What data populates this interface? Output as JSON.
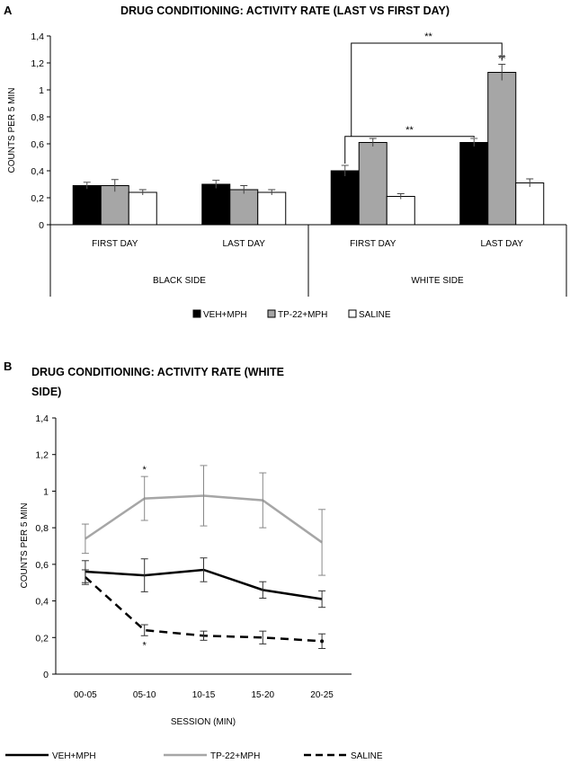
{
  "colors": {
    "veh": "#000000",
    "tp22": "#a6a6a6",
    "saline": "#ffffff",
    "axis": "#000000"
  },
  "chart_data": [
    {
      "panel": "A",
      "type": "bar",
      "title": "DRUG CONDITIONING: ACTIVITY RATE (LAST VS FIRST DAY)",
      "ylabel": "COUNTS PER 5 MIN",
      "xlabel": "",
      "ylim": [
        0,
        1.4
      ],
      "yticks": [
        0,
        0.2,
        0.4,
        0.6,
        0.8,
        1,
        1.2,
        1.4
      ],
      "ytick_labels": [
        "0",
        "0,2",
        "0,4",
        "0,6",
        "0,8",
        "1",
        "1,2",
        "1,4"
      ],
      "categories": [
        "FIRST DAY",
        "LAST DAY",
        "FIRST DAY",
        "LAST DAY"
      ],
      "groups": [
        "BLACK SIDE",
        "WHITE SIDE"
      ],
      "series": [
        {
          "name": "VEH+MPH",
          "color": "#000000",
          "values": [
            0.29,
            0.3,
            0.4,
            0.61
          ],
          "errors": [
            0.025,
            0.03,
            0.04,
            0.03
          ]
        },
        {
          "name": "TP-22+MPH",
          "color": "#a6a6a6",
          "values": [
            0.29,
            0.26,
            0.61,
            1.13
          ],
          "errors": [
            0.045,
            0.03,
            0.03,
            0.06
          ]
        },
        {
          "name": "SALINE",
          "color": "#ffffff",
          "values": [
            0.24,
            0.24,
            0.21,
            0.31
          ],
          "errors": [
            0.02,
            0.02,
            0.02,
            0.03
          ]
        }
      ],
      "annotations": [
        {
          "text": "**",
          "note": "TP-22+MPH white side first day vs last day"
        },
        {
          "text": "**",
          "note": "VEH+MPH white side first day vs last day"
        },
        {
          "text": "**",
          "note": "TP-22+MPH last day"
        }
      ],
      "legend_position": "bottom"
    },
    {
      "panel": "B",
      "type": "line",
      "title_lines": [
        "DRUG CONDITIONING: ACTIVITY RATE (WHITE",
        "SIDE)"
      ],
      "ylabel": "COUNTS PER 5 MIN",
      "xlabel": "SESSION (MIN)",
      "ylim": [
        0,
        1.4
      ],
      "yticks": [
        0,
        0.2,
        0.4,
        0.6,
        0.8,
        1,
        1.2,
        1.4
      ],
      "ytick_labels": [
        "0",
        "0,2",
        "0,4",
        "0,6",
        "0,8",
        "1",
        "1,2",
        "1,4"
      ],
      "x": [
        "00-05",
        "05-10",
        "10-15",
        "15-20",
        "20-25"
      ],
      "series": [
        {
          "name": "VEH+MPH",
          "style": "solid",
          "color": "#000000",
          "values": [
            0.56,
            0.54,
            0.57,
            0.46,
            0.41
          ],
          "errors": [
            0.06,
            0.09,
            0.065,
            0.045,
            0.045
          ]
        },
        {
          "name": "TP-22+MPH",
          "style": "solid",
          "color": "#a6a6a6",
          "values": [
            0.74,
            0.96,
            0.975,
            0.95,
            0.72
          ],
          "errors": [
            0.08,
            0.12,
            0.165,
            0.15,
            0.18
          ]
        },
        {
          "name": "SALINE",
          "style": "dashed",
          "color": "#000000",
          "values": [
            0.53,
            0.24,
            0.21,
            0.2,
            0.18
          ],
          "errors": [
            0.04,
            0.03,
            0.025,
            0.035,
            0.04
          ]
        }
      ],
      "annotations": [
        {
          "text": "*",
          "x": "05-10",
          "note": "above TP-22+MPH"
        },
        {
          "text": "*",
          "x": "05-10",
          "note": "below SALINE"
        }
      ],
      "legend_position": "bottom"
    }
  ]
}
